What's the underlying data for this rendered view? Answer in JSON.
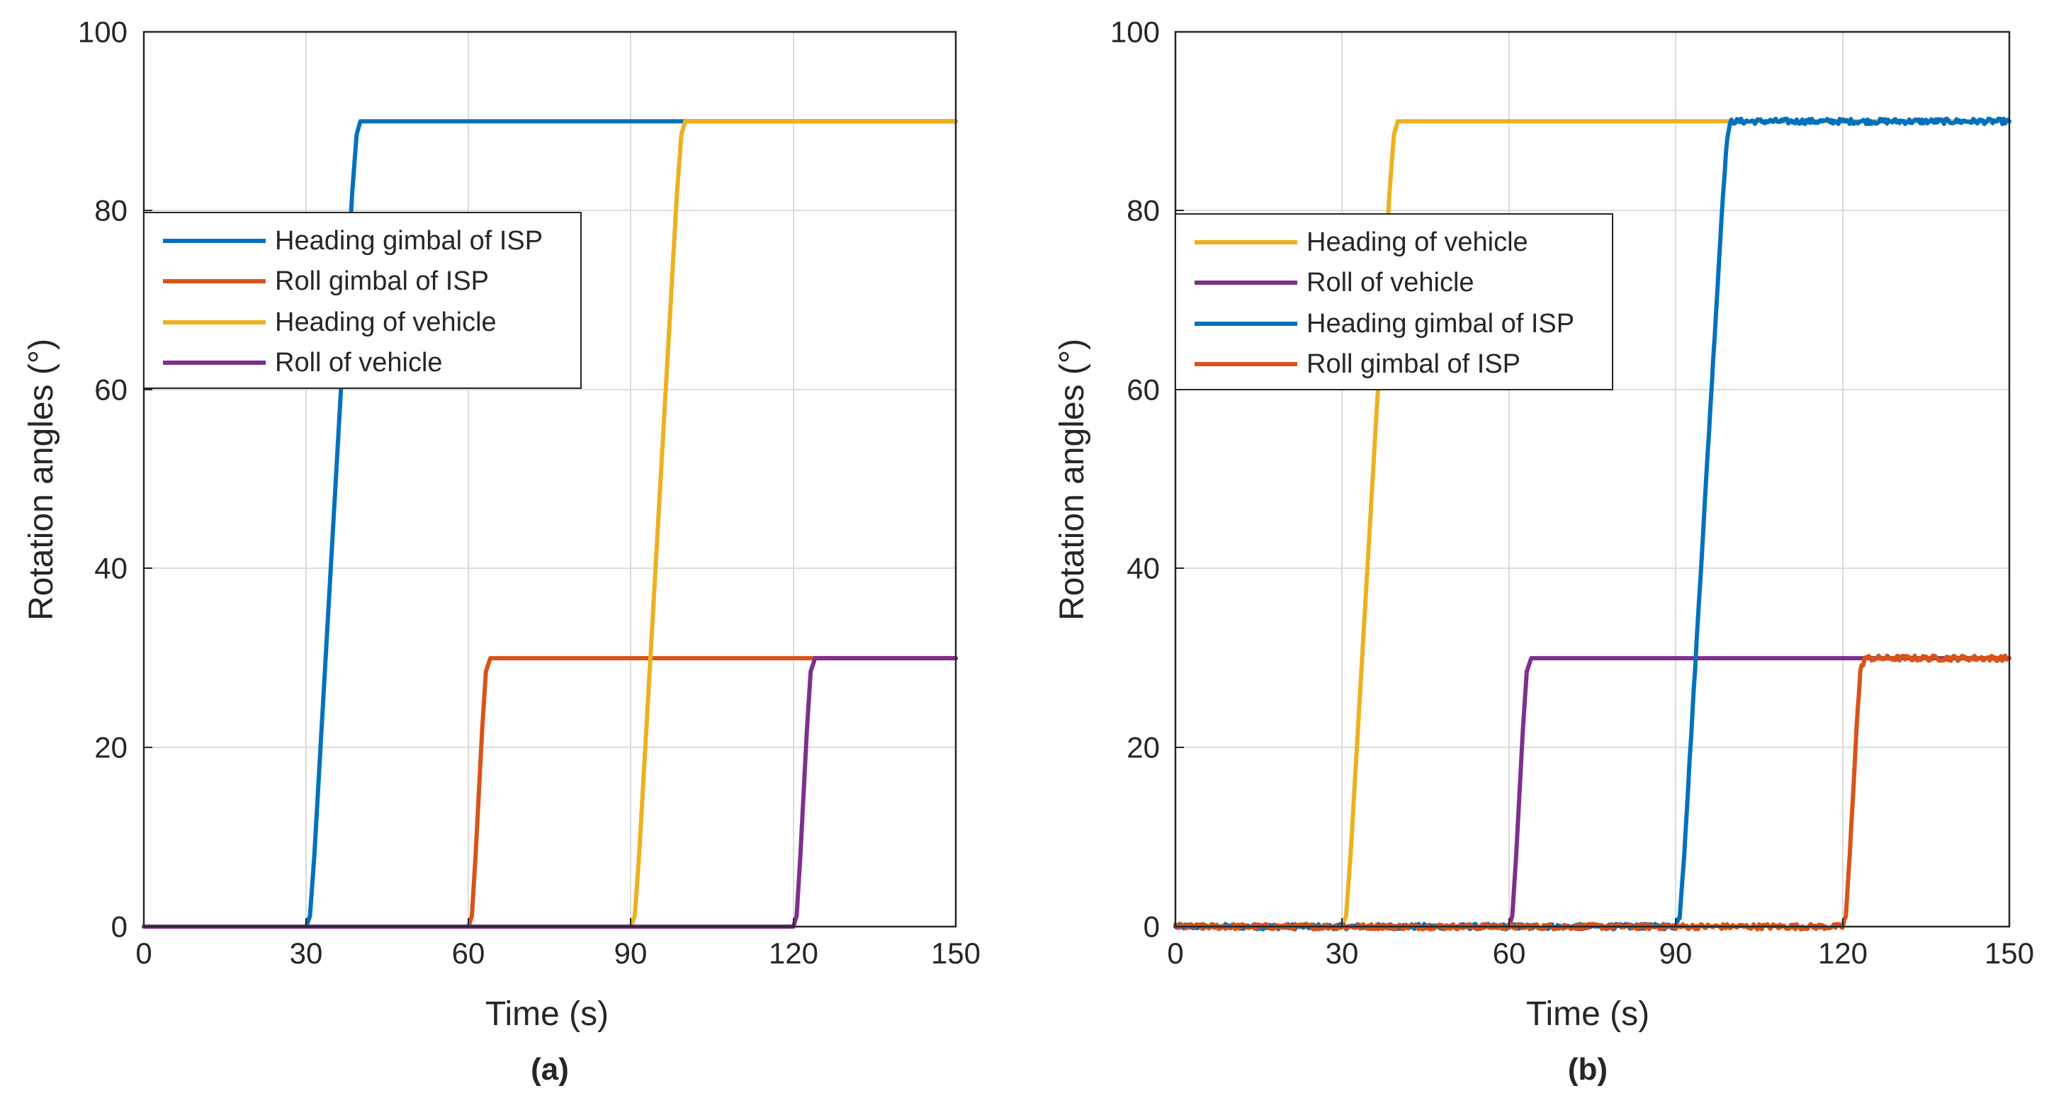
{
  "chart_data": [
    {
      "type": "line",
      "caption": "(a)",
      "xlabel": "Time (s)",
      "ylabel": "Rotation angles (°)",
      "xlim": [
        0,
        150
      ],
      "ylim": [
        0,
        100
      ],
      "xticks": [
        "0",
        "30",
        "60",
        "90",
        "120",
        "150"
      ],
      "yticks": [
        "0",
        "20",
        "40",
        "60",
        "80",
        "100"
      ],
      "grid": true,
      "legend_position": "upper-left",
      "series": [
        {
          "name": "Heading gimbal of ISP",
          "color": "#0072BD",
          "noisy": false,
          "x": [
            0,
            30,
            30.7,
            31.5,
            38.5,
            39.3,
            40,
            150
          ],
          "y": [
            0,
            0,
            1.2,
            8,
            82,
            88.5,
            90,
            90
          ]
        },
        {
          "name": "Roll gimbal of ISP",
          "color": "#D95319",
          "noisy": false,
          "x": [
            0,
            60,
            60.6,
            61.3,
            62.5,
            63.2,
            64,
            150
          ],
          "y": [
            0,
            0,
            1.2,
            8,
            22,
            28.5,
            30,
            30
          ]
        },
        {
          "name": "Heading of vehicle",
          "color": "#EDB120",
          "noisy": false,
          "x": [
            0,
            90,
            90.7,
            91.5,
            98.5,
            99.3,
            100,
            150
          ],
          "y": [
            0,
            0,
            1.2,
            8,
            82,
            88.5,
            90,
            90
          ]
        },
        {
          "name": "Roll of vehicle",
          "color": "#7E2F8E",
          "noisy": false,
          "x": [
            0,
            120,
            120.6,
            121.3,
            122.5,
            123.2,
            124,
            150
          ],
          "y": [
            0,
            0,
            1.2,
            8,
            22,
            28.5,
            30,
            30
          ]
        }
      ]
    },
    {
      "type": "line",
      "caption": "(b)",
      "xlabel": "Time (s)",
      "ylabel": "Rotation angles (°)",
      "xlim": [
        0,
        150
      ],
      "ylim": [
        0,
        100
      ],
      "xticks": [
        "0",
        "30",
        "60",
        "90",
        "120",
        "150"
      ],
      "yticks": [
        "0",
        "20",
        "40",
        "60",
        "80",
        "100"
      ],
      "grid": true,
      "legend_position": "upper-left",
      "series": [
        {
          "name": "Heading of vehicle",
          "color": "#EDB120",
          "noisy": false,
          "x": [
            0,
            30,
            30.7,
            31.5,
            38.5,
            39.3,
            40,
            150
          ],
          "y": [
            0,
            0,
            1.2,
            8,
            82,
            88.5,
            90,
            90
          ]
        },
        {
          "name": "Roll of vehicle",
          "color": "#7E2F8E",
          "noisy": false,
          "x": [
            0,
            60,
            60.6,
            61.3,
            62.5,
            63.2,
            64,
            150
          ],
          "y": [
            0,
            0,
            1.2,
            8,
            22,
            28.5,
            30,
            30
          ]
        },
        {
          "name": "Heading gimbal of ISP",
          "color": "#0072BD",
          "noisy": true,
          "x": [
            0,
            90,
            90.7,
            91.5,
            98.5,
            99.3,
            100,
            150
          ],
          "y": [
            0,
            0,
            1.2,
            8,
            82,
            88.5,
            90,
            90
          ]
        },
        {
          "name": "Roll gimbal of ISP",
          "color": "#D95319",
          "noisy": true,
          "x": [
            0,
            120,
            120.6,
            121.3,
            122.5,
            123.2,
            124,
            150
          ],
          "y": [
            0,
            0,
            1.2,
            8,
            22,
            28.5,
            30,
            30
          ]
        }
      ]
    }
  ]
}
